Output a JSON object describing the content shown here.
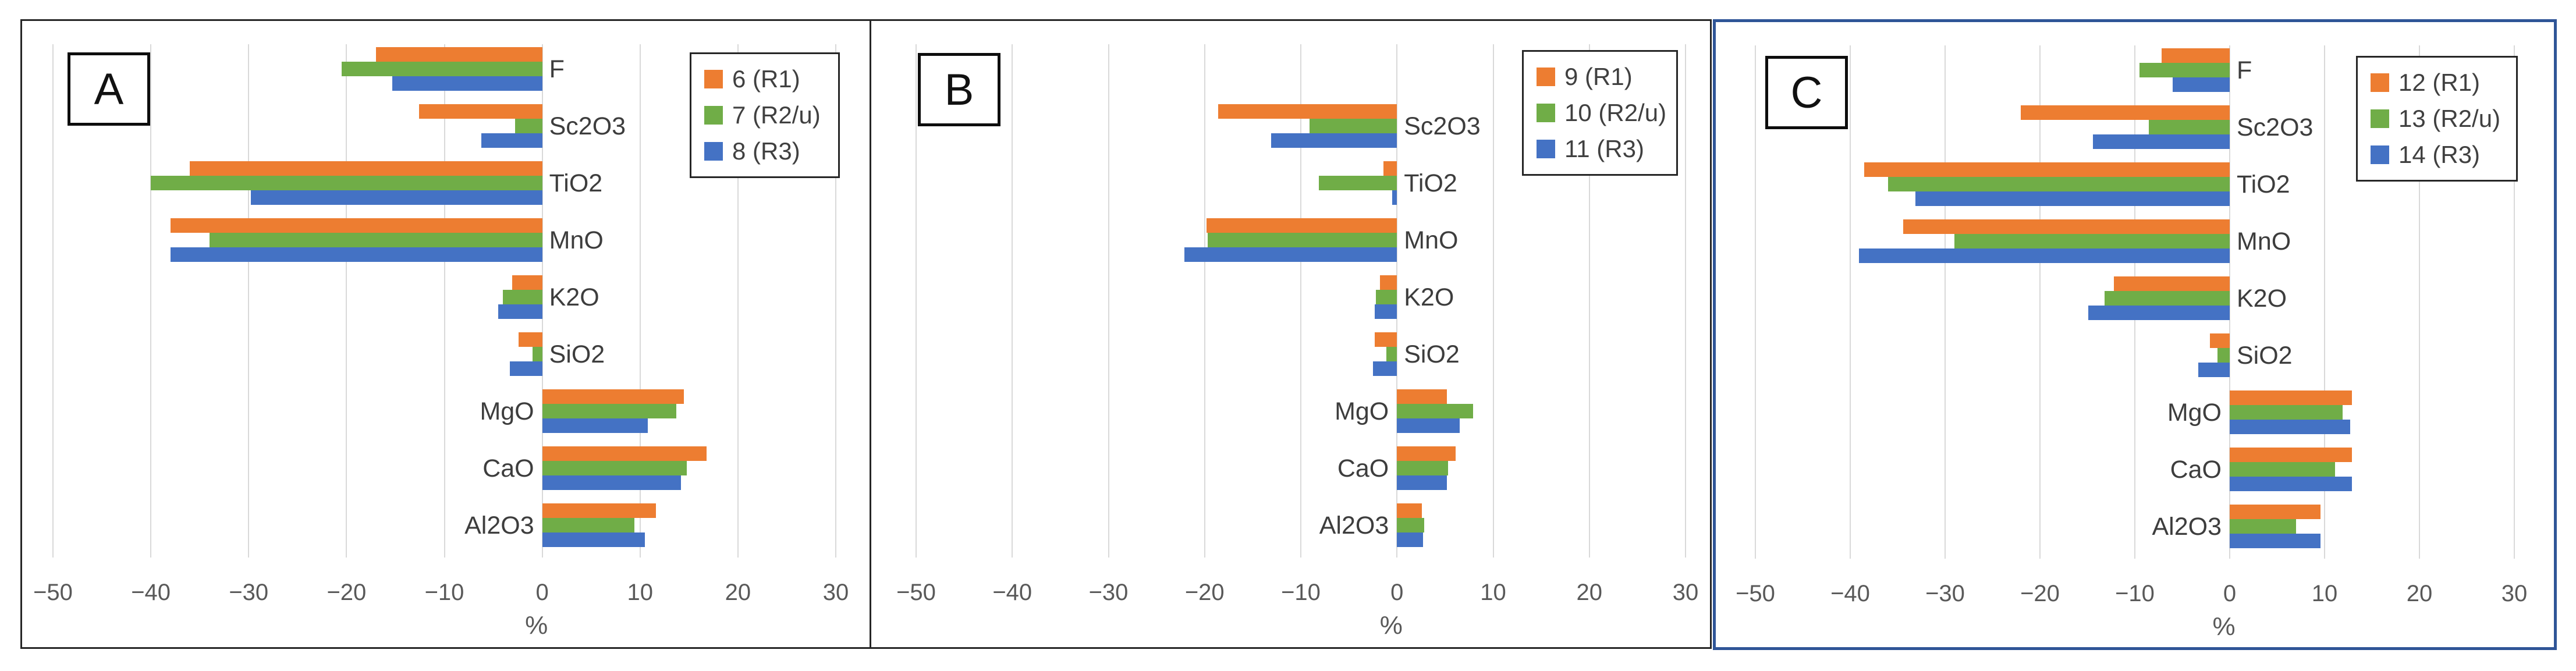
{
  "figure": {
    "background": "#FFFFFF",
    "series_order": [
      "R1",
      "R2",
      "R3"
    ],
    "series_colors": {
      "R1": "#ED7D31",
      "R2": "#70AD47",
      "R3": "#4472C4"
    },
    "grid_color": "#D9D9D9",
    "tick_text_color": "#595959",
    "category_text_color": "#3d3d3d",
    "panel_border_color": "#262626",
    "panel_c_border_color": "#2F5597"
  },
  "axis": {
    "min": -50,
    "max": 30,
    "step": 10,
    "tick_values": [
      -50,
      -40,
      -30,
      -20,
      -10,
      0,
      10,
      20,
      30
    ],
    "tick_labels": [
      "−50",
      "−40",
      "−30",
      "−20",
      "−10",
      "0",
      "10",
      "20",
      "30"
    ],
    "title": "%",
    "grid": true
  },
  "chart_data": [
    {
      "type": "bar",
      "orientation": "horizontal",
      "panel_label": "A",
      "xlabel": "%",
      "xlim": [
        -50,
        30
      ],
      "grid": true,
      "legend_position": "top-right-inside",
      "legend": [
        {
          "label": "6 (R1)",
          "series": "R1"
        },
        {
          "label": "7 (R2/u)",
          "series": "R2"
        },
        {
          "label": "8 (R3)",
          "series": "R3"
        }
      ],
      "rows_total": 9,
      "rows": [
        {
          "category": "F",
          "slot": 0,
          "label_side": "right",
          "values": {
            "R1": -17.0,
            "R2": -20.5,
            "R3": -15.3
          }
        },
        {
          "category": "Sc2O3",
          "slot": 1,
          "label_side": "right",
          "values": {
            "R1": -12.6,
            "R2": -2.8,
            "R3": -6.2
          }
        },
        {
          "category": "TiO2",
          "slot": 2,
          "label_side": "right",
          "values": {
            "R1": -36.0,
            "R2": -40.0,
            "R3": -29.8
          }
        },
        {
          "category": "MnO",
          "slot": 3,
          "label_side": "right",
          "values": {
            "R1": -38.0,
            "R2": -34.0,
            "R3": -38.0
          }
        },
        {
          "category": "K2O",
          "slot": 4,
          "label_side": "right",
          "values": {
            "R1": -3.1,
            "R2": -4.0,
            "R3": -4.5
          }
        },
        {
          "category": "SiO2",
          "slot": 5,
          "label_side": "right",
          "values": {
            "R1": -2.4,
            "R2": -1.0,
            "R3": -3.3
          }
        },
        {
          "category": "MgO",
          "slot": 6,
          "label_side": "left",
          "values": {
            "R1": 14.5,
            "R2": 13.7,
            "R3": 10.8
          }
        },
        {
          "category": "CaO",
          "slot": 7,
          "label_side": "left",
          "values": {
            "R1": 16.8,
            "R2": 14.8,
            "R3": 14.2
          }
        },
        {
          "category": "Al2O3",
          "slot": 8,
          "label_side": "left",
          "values": {
            "R1": 11.6,
            "R2": 9.4,
            "R3": 10.5
          }
        }
      ]
    },
    {
      "type": "bar",
      "orientation": "horizontal",
      "panel_label": "B",
      "xlabel": "%",
      "xlim": [
        -50,
        30
      ],
      "grid": true,
      "legend_position": "top-right-inside",
      "legend": [
        {
          "label": "9 (R1)",
          "series": "R1"
        },
        {
          "label": "10 (R2/u)",
          "series": "R2"
        },
        {
          "label": "11 (R3)",
          "series": "R3"
        }
      ],
      "rows_total": 9,
      "rows": [
        {
          "category": "Sc2O3",
          "slot": 1,
          "label_side": "right",
          "values": {
            "R1": -18.6,
            "R2": -9.1,
            "R3": -13.1
          }
        },
        {
          "category": "TiO2",
          "slot": 2,
          "label_side": "right",
          "values": {
            "R1": -1.4,
            "R2": -8.1,
            "R3": -0.5
          }
        },
        {
          "category": "MnO",
          "slot": 3,
          "label_side": "right",
          "values": {
            "R1": -19.8,
            "R2": -19.7,
            "R3": -22.1
          }
        },
        {
          "category": "K2O",
          "slot": 4,
          "label_side": "right",
          "values": {
            "R1": -1.8,
            "R2": -2.2,
            "R3": -2.3
          }
        },
        {
          "category": "SiO2",
          "slot": 5,
          "label_side": "right",
          "values": {
            "R1": -2.3,
            "R2": -1.1,
            "R3": -2.5
          }
        },
        {
          "category": "MgO",
          "slot": 6,
          "label_side": "left",
          "values": {
            "R1": 5.2,
            "R2": 7.9,
            "R3": 6.5
          }
        },
        {
          "category": "CaO",
          "slot": 7,
          "label_side": "left",
          "values": {
            "R1": 6.1,
            "R2": 5.3,
            "R3": 5.2
          }
        },
        {
          "category": "Al2O3",
          "slot": 8,
          "label_side": "left",
          "values": {
            "R1": 2.6,
            "R2": 2.8,
            "R3": 2.7
          }
        }
      ]
    },
    {
      "type": "bar",
      "orientation": "horizontal",
      "panel_label": "C",
      "xlabel": "%",
      "xlim": [
        -50,
        30
      ],
      "grid": true,
      "legend_position": "top-right-inside",
      "legend": [
        {
          "label": "12 (R1)",
          "series": "R1"
        },
        {
          "label": "13 (R2/u)",
          "series": "R2"
        },
        {
          "label": "14 (R3)",
          "series": "R3"
        }
      ],
      "rows_total": 9,
      "rows": [
        {
          "category": "F",
          "slot": 0,
          "label_side": "right",
          "values": {
            "R1": -7.2,
            "R2": -9.5,
            "R3": -6.0
          }
        },
        {
          "category": "Sc2O3",
          "slot": 1,
          "label_side": "right",
          "values": {
            "R1": -22.0,
            "R2": -8.5,
            "R3": -14.4
          }
        },
        {
          "category": "TiO2",
          "slot": 2,
          "label_side": "right",
          "values": {
            "R1": -38.5,
            "R2": -36.0,
            "R3": -33.1
          }
        },
        {
          "category": "MnO",
          "slot": 3,
          "label_side": "right",
          "values": {
            "R1": -34.4,
            "R2": -29.0,
            "R3": -39.1
          }
        },
        {
          "category": "K2O",
          "slot": 4,
          "label_side": "right",
          "values": {
            "R1": -12.2,
            "R2": -13.2,
            "R3": -14.9
          }
        },
        {
          "category": "SiO2",
          "slot": 5,
          "label_side": "right",
          "values": {
            "R1": -2.1,
            "R2": -1.3,
            "R3": -3.3
          }
        },
        {
          "category": "MgO",
          "slot": 6,
          "label_side": "left",
          "values": {
            "R1": 12.9,
            "R2": 11.9,
            "R3": 12.7
          }
        },
        {
          "category": "CaO",
          "slot": 7,
          "label_side": "left",
          "values": {
            "R1": 12.9,
            "R2": 11.1,
            "R3": 12.9
          }
        },
        {
          "category": "Al2O3",
          "slot": 8,
          "label_side": "left",
          "values": {
            "R1": 9.6,
            "R2": 7.0,
            "R3": 9.6
          }
        }
      ]
    }
  ]
}
